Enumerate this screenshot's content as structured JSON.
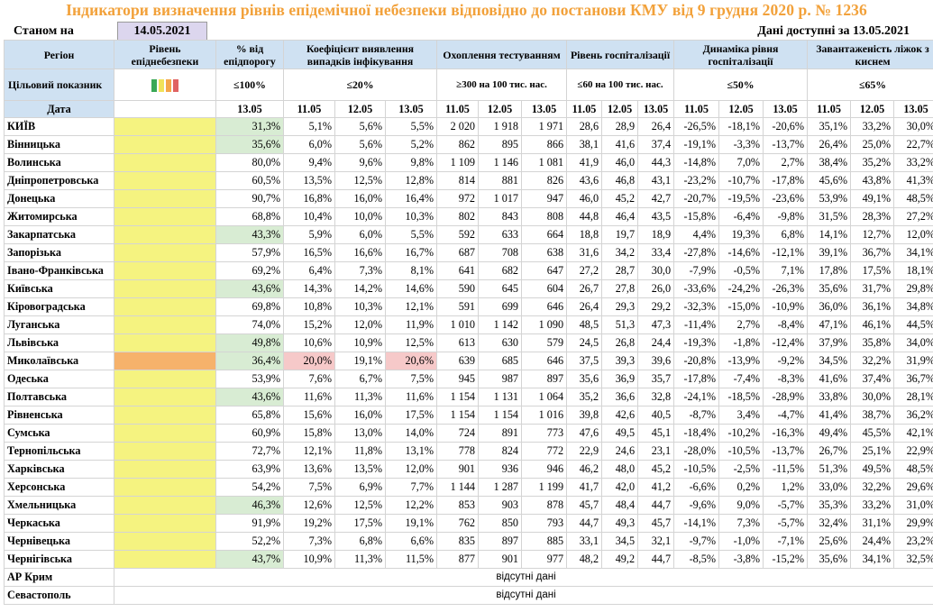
{
  "title": "Індикатори визначення рівнів епідемічної небезпеки відповідно до постанови КМУ від 9 грудня 2020 р. № 1236",
  "stanom_label": "Станом на",
  "stanom_date": "14.05.2021",
  "available_label": "Дані доступні за",
  "available_date": "13.05.2021",
  "headers": {
    "region": "Регіон",
    "level": "Рівень епіднебезпеки",
    "pct": "% від епідпорогу",
    "coef": "Коефіцієнт виявлення випадків інфікування",
    "test": "Охоплення тестуванням",
    "hosp": "Рівень госпіталізації",
    "dyn": "Динаміка рівня госпіталізації",
    "oxy": "Завантаженість ліжок з киснем"
  },
  "target": {
    "label": "Цільовий показник",
    "pct": "≤100%",
    "coef": "≤20%",
    "test": "≥300 на 100 тис. нас.",
    "hosp": "≤60 на 100 тис. нас.",
    "dyn": "≤50%",
    "oxy": "≤65%"
  },
  "level_colors": [
    "#3aa856",
    "#f1e25a",
    "#f4a64a",
    "#e06363"
  ],
  "date_row": {
    "label": "Дата",
    "pct": "13.05",
    "d1": "11.05",
    "d2": "12.05",
    "d3": "13.05"
  },
  "rows": [
    {
      "name": "КИЇВ",
      "pct": "31,3%",
      "c": [
        "5,1%",
        "5,6%",
        "5,5%"
      ],
      "t": [
        "2 020",
        "1 918",
        "1 971"
      ],
      "h": [
        "28,6",
        "28,9",
        "26,4"
      ],
      "d": [
        "-26,5%",
        "-18,1%",
        "-20,6%"
      ],
      "o": [
        "35,1%",
        "33,2%",
        "30,0%"
      ]
    },
    {
      "name": "Вінницька",
      "pct": "35,6%",
      "c": [
        "6,0%",
        "5,6%",
        "5,2%"
      ],
      "t": [
        "862",
        "895",
        "866"
      ],
      "h": [
        "38,1",
        "41,6",
        "37,4"
      ],
      "d": [
        "-19,1%",
        "-3,3%",
        "-13,7%"
      ],
      "o": [
        "26,4%",
        "25,0%",
        "22,7%"
      ]
    },
    {
      "name": "Волинська",
      "pct": "80,0%",
      "c": [
        "9,4%",
        "9,6%",
        "9,8%"
      ],
      "t": [
        "1 109",
        "1 146",
        "1 081"
      ],
      "h": [
        "41,9",
        "46,0",
        "44,3"
      ],
      "d": [
        "-14,8%",
        "7,0%",
        "2,7%"
      ],
      "o": [
        "38,4%",
        "35,2%",
        "33,2%"
      ]
    },
    {
      "name": "Дніпропетровська",
      "pct": "60,5%",
      "c": [
        "13,5%",
        "12,5%",
        "12,8%"
      ],
      "t": [
        "814",
        "881",
        "826"
      ],
      "h": [
        "43,6",
        "46,8",
        "43,1"
      ],
      "d": [
        "-23,2%",
        "-10,7%",
        "-17,8%"
      ],
      "o": [
        "45,6%",
        "43,8%",
        "41,3%"
      ]
    },
    {
      "name": "Донецька",
      "pct": "90,7%",
      "c": [
        "16,8%",
        "16,0%",
        "16,4%"
      ],
      "t": [
        "972",
        "1 017",
        "947"
      ],
      "h": [
        "46,0",
        "45,2",
        "42,7"
      ],
      "d": [
        "-20,7%",
        "-19,5%",
        "-23,6%"
      ],
      "o": [
        "53,9%",
        "49,1%",
        "48,5%"
      ]
    },
    {
      "name": "Житомирська",
      "pct": "68,8%",
      "c": [
        "10,4%",
        "10,0%",
        "10,3%"
      ],
      "t": [
        "802",
        "843",
        "808"
      ],
      "h": [
        "44,8",
        "46,4",
        "43,5"
      ],
      "d": [
        "-15,8%",
        "-6,4%",
        "-9,8%"
      ],
      "o": [
        "31,5%",
        "28,3%",
        "27,2%"
      ]
    },
    {
      "name": "Закарпатська",
      "pct": "43,3%",
      "c": [
        "5,9%",
        "6,0%",
        "5,5%"
      ],
      "t": [
        "592",
        "633",
        "664"
      ],
      "h": [
        "18,8",
        "19,7",
        "18,9"
      ],
      "d": [
        "4,4%",
        "19,3%",
        "6,8%"
      ],
      "o": [
        "14,1%",
        "12,7%",
        "12,0%"
      ]
    },
    {
      "name": "Запорізька",
      "pct": "57,9%",
      "c": [
        "16,5%",
        "16,6%",
        "16,7%"
      ],
      "t": [
        "687",
        "708",
        "638"
      ],
      "h": [
        "31,6",
        "34,2",
        "33,4"
      ],
      "d": [
        "-27,8%",
        "-14,6%",
        "-12,1%"
      ],
      "o": [
        "39,1%",
        "36,7%",
        "34,1%"
      ]
    },
    {
      "name": "Івано-Франківська",
      "pct": "69,2%",
      "c": [
        "6,4%",
        "7,3%",
        "8,1%"
      ],
      "t": [
        "641",
        "682",
        "647"
      ],
      "h": [
        "27,2",
        "28,7",
        "30,0"
      ],
      "d": [
        "-7,9%",
        "-0,5%",
        "7,1%"
      ],
      "o": [
        "17,8%",
        "17,5%",
        "18,1%"
      ]
    },
    {
      "name": "Київська",
      "pct": "43,6%",
      "c": [
        "14,3%",
        "14,2%",
        "14,6%"
      ],
      "t": [
        "590",
        "645",
        "604"
      ],
      "h": [
        "26,7",
        "27,8",
        "26,0"
      ],
      "d": [
        "-33,6%",
        "-24,2%",
        "-26,3%"
      ],
      "o": [
        "35,6%",
        "31,7%",
        "29,8%"
      ]
    },
    {
      "name": "Кіровоградська",
      "pct": "69,8%",
      "c": [
        "10,8%",
        "10,3%",
        "12,1%"
      ],
      "t": [
        "591",
        "699",
        "646"
      ],
      "h": [
        "26,4",
        "29,3",
        "29,2"
      ],
      "d": [
        "-32,3%",
        "-15,0%",
        "-10,9%"
      ],
      "o": [
        "36,0%",
        "36,1%",
        "34,8%"
      ]
    },
    {
      "name": "Луганська",
      "pct": "74,0%",
      "c": [
        "15,2%",
        "12,0%",
        "11,9%"
      ],
      "t": [
        "1 010",
        "1 142",
        "1 090"
      ],
      "h": [
        "48,5",
        "51,3",
        "47,3"
      ],
      "d": [
        "-11,4%",
        "2,7%",
        "-8,4%"
      ],
      "o": [
        "47,1%",
        "46,1%",
        "44,5%"
      ]
    },
    {
      "name": "Львівська",
      "pct": "49,8%",
      "c": [
        "10,6%",
        "10,9%",
        "12,5%"
      ],
      "t": [
        "613",
        "630",
        "579"
      ],
      "h": [
        "24,5",
        "26,8",
        "24,4"
      ],
      "d": [
        "-19,3%",
        "-1,8%",
        "-12,4%"
      ],
      "o": [
        "37,9%",
        "35,8%",
        "34,0%"
      ]
    },
    {
      "name": "Миколаївська",
      "pct": "36,4%",
      "c": [
        "20,0%",
        "19,1%",
        "20,6%"
      ],
      "t": [
        "639",
        "685",
        "646"
      ],
      "h": [
        "37,5",
        "39,3",
        "39,6"
      ],
      "d": [
        "-20,8%",
        "-13,9%",
        "-9,2%"
      ],
      "o": [
        "34,5%",
        "32,2%",
        "31,9%"
      ]
    },
    {
      "name": "Одеська",
      "pct": "53,9%",
      "c": [
        "7,6%",
        "6,7%",
        "7,5%"
      ],
      "t": [
        "945",
        "987",
        "897"
      ],
      "h": [
        "35,6",
        "36,9",
        "35,7"
      ],
      "d": [
        "-17,8%",
        "-7,4%",
        "-8,3%"
      ],
      "o": [
        "41,6%",
        "37,4%",
        "36,7%"
      ]
    },
    {
      "name": "Полтавська",
      "pct": "43,6%",
      "c": [
        "11,6%",
        "11,3%",
        "11,6%"
      ],
      "t": [
        "1 154",
        "1 131",
        "1 064"
      ],
      "h": [
        "35,2",
        "36,6",
        "32,8"
      ],
      "d": [
        "-24,1%",
        "-18,5%",
        "-28,9%"
      ],
      "o": [
        "33,8%",
        "30,0%",
        "28,1%"
      ]
    },
    {
      "name": "Рівненська",
      "pct": "65,8%",
      "c": [
        "15,6%",
        "16,0%",
        "17,5%"
      ],
      "t": [
        "1 154",
        "1 154",
        "1 016"
      ],
      "h": [
        "39,8",
        "42,6",
        "40,5"
      ],
      "d": [
        "-8,7%",
        "3,4%",
        "-4,7%"
      ],
      "o": [
        "41,4%",
        "38,7%",
        "36,2%"
      ]
    },
    {
      "name": "Сумська",
      "pct": "60,9%",
      "c": [
        "15,8%",
        "13,0%",
        "14,0%"
      ],
      "t": [
        "724",
        "891",
        "773"
      ],
      "h": [
        "47,6",
        "49,5",
        "45,1"
      ],
      "d": [
        "-18,4%",
        "-10,2%",
        "-16,3%"
      ],
      "o": [
        "49,4%",
        "45,5%",
        "42,1%"
      ]
    },
    {
      "name": "Тернопільська",
      "pct": "72,7%",
      "c": [
        "12,1%",
        "11,8%",
        "13,1%"
      ],
      "t": [
        "778",
        "824",
        "772"
      ],
      "h": [
        "22,9",
        "24,6",
        "23,1"
      ],
      "d": [
        "-28,0%",
        "-10,5%",
        "-13,7%"
      ],
      "o": [
        "26,7%",
        "25,1%",
        "22,9%"
      ]
    },
    {
      "name": "Харківська",
      "pct": "63,9%",
      "c": [
        "13,6%",
        "13,5%",
        "12,0%"
      ],
      "t": [
        "901",
        "936",
        "946"
      ],
      "h": [
        "46,2",
        "48,0",
        "45,2"
      ],
      "d": [
        "-10,5%",
        "-2,5%",
        "-11,5%"
      ],
      "o": [
        "51,3%",
        "49,5%",
        "48,5%"
      ]
    },
    {
      "name": "Херсонська",
      "pct": "54,2%",
      "c": [
        "7,5%",
        "6,9%",
        "7,7%"
      ],
      "t": [
        "1 144",
        "1 287",
        "1 199"
      ],
      "h": [
        "41,7",
        "42,0",
        "41,2"
      ],
      "d": [
        "-6,6%",
        "0,2%",
        "1,2%"
      ],
      "o": [
        "33,0%",
        "32,2%",
        "29,6%"
      ]
    },
    {
      "name": "Хмельницька",
      "pct": "46,3%",
      "c": [
        "12,6%",
        "12,5%",
        "12,2%"
      ],
      "t": [
        "853",
        "903",
        "878"
      ],
      "h": [
        "45,7",
        "48,4",
        "44,7"
      ],
      "d": [
        "-9,6%",
        "9,0%",
        "-5,7%"
      ],
      "o": [
        "35,3%",
        "33,2%",
        "31,0%"
      ]
    },
    {
      "name": "Черкаська",
      "pct": "91,9%",
      "c": [
        "19,2%",
        "17,5%",
        "19,1%"
      ],
      "t": [
        "762",
        "850",
        "793"
      ],
      "h": [
        "44,7",
        "49,3",
        "45,7"
      ],
      "d": [
        "-14,1%",
        "7,3%",
        "-5,7%"
      ],
      "o": [
        "32,4%",
        "31,1%",
        "29,9%"
      ]
    },
    {
      "name": "Чернівецька",
      "pct": "52,2%",
      "c": [
        "7,3%",
        "6,8%",
        "6,6%"
      ],
      "t": [
        "835",
        "897",
        "885"
      ],
      "h": [
        "33,1",
        "34,5",
        "32,1"
      ],
      "d": [
        "-9,7%",
        "-1,0%",
        "-7,1%"
      ],
      "o": [
        "25,6%",
        "24,4%",
        "23,2%"
      ]
    },
    {
      "name": "Чернігівська",
      "pct": "43,7%",
      "c": [
        "10,9%",
        "11,3%",
        "11,5%"
      ],
      "t": [
        "877",
        "901",
        "977"
      ],
      "h": [
        "48,2",
        "49,2",
        "44,7"
      ],
      "d": [
        "-8,5%",
        "-3,8%",
        "-15,2%"
      ],
      "o": [
        "35,6%",
        "34,1%",
        "32,5%"
      ]
    }
  ],
  "missing_rows": [
    {
      "name": "АР Крим",
      "text": "відсутні дані"
    },
    {
      "name": "Севастополь",
      "text": "відсутні дані"
    }
  ]
}
